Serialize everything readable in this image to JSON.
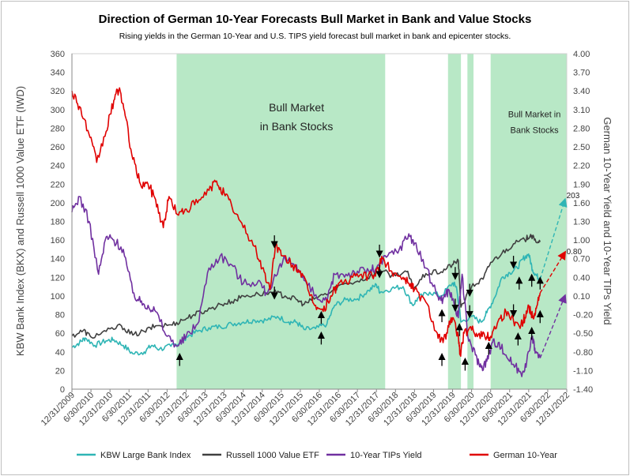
{
  "chart_data": {
    "type": "line",
    "title": "Direction of German 10-Year Forecasts Bull Market in Bank and Value Stocks",
    "subtitle": "Rising yields in the German 10-Year and U.S. TIPS yield forecast bull market in bank and epicenter stocks.",
    "ylabel_left": "KBW Bank Index (BKX) and Russell 1000 Value ETF (IWD)",
    "ylabel_right": "German 10-Year Yield and 10-Year TIPs Yield",
    "ylim_left": [
      0,
      360
    ],
    "ylim_right": [
      -1.4,
      4.0
    ],
    "yticks_left": [
      "0",
      "20",
      "40",
      "60",
      "80",
      "100",
      "120",
      "140",
      "160",
      "180",
      "200",
      "220",
      "240",
      "260",
      "280",
      "300",
      "320",
      "340",
      "360"
    ],
    "yticks_right": [
      "-1.40",
      "-1.10",
      "-0.80",
      "-0.50",
      "-0.20",
      "0.10",
      "0.40",
      "0.70",
      "1.00",
      "1.30",
      "1.60",
      "1.90",
      "2.20",
      "2.50",
      "2.80",
      "3.10",
      "3.40",
      "3.70",
      "4.00"
    ],
    "xticks": [
      "12/31/2009",
      "6/30/2010",
      "12/31/2010",
      "6/30/2011",
      "12/31/2011",
      "6/30/2012",
      "12/31/2012",
      "6/30/2013",
      "12/31/2013",
      "6/30/2014",
      "12/31/2014",
      "6/30/2015",
      "12/31/2015",
      "6/30/2016",
      "12/31/2016",
      "6/30/2017",
      "12/31/2017",
      "6/30/2018",
      "12/31/2018",
      "6/30/2019",
      "12/31/2019",
      "6/30/2020",
      "12/31/2020",
      "6/30/2021",
      "12/31/2021",
      "6/30/2022",
      "12/31/2022"
    ],
    "xlim": [
      2010.0,
      2023.0
    ],
    "shaded_regions": [
      [
        2012.75,
        2018.23
      ],
      [
        2019.88,
        2020.22
      ],
      [
        2020.39,
        2020.55
      ],
      [
        2021.0,
        2023.0
      ]
    ],
    "annotations": [
      {
        "text": "Bull Market",
        "x": 2015.9,
        "y": 298
      },
      {
        "text": "in Bank Stocks",
        "x": 2015.9,
        "y": 278
      },
      {
        "text": "Bull Market in",
        "x": 2022.15,
        "y": 292
      },
      {
        "text": "Bank Stocks",
        "x": 2022.15,
        "y": 275
      },
      {
        "text": "203",
        "x": 2022.95,
        "y": 205
      },
      {
        "text": "0.80",
        "x": 2022.95,
        "y": 145
      }
    ],
    "series": [
      {
        "name": "KBW Large Bank Index",
        "color": "#2fb5b5",
        "axis": "left",
        "points": [
          [
            2010.0,
            45
          ],
          [
            2010.2,
            50
          ],
          [
            2010.35,
            55
          ],
          [
            2010.6,
            47
          ],
          [
            2010.9,
            52
          ],
          [
            2011.1,
            53
          ],
          [
            2011.35,
            47
          ],
          [
            2011.6,
            38
          ],
          [
            2011.9,
            40
          ],
          [
            2012.1,
            47
          ],
          [
            2012.3,
            43
          ],
          [
            2012.6,
            46
          ],
          [
            2012.85,
            50
          ],
          [
            2013.0,
            56
          ],
          [
            2013.3,
            62
          ],
          [
            2013.6,
            66
          ],
          [
            2013.9,
            67
          ],
          [
            2014.2,
            70
          ],
          [
            2014.5,
            72
          ],
          [
            2014.8,
            74
          ],
          [
            2015.1,
            74
          ],
          [
            2015.4,
            78
          ],
          [
            2015.7,
            72
          ],
          [
            2015.9,
            72
          ],
          [
            2016.1,
            64
          ],
          [
            2016.4,
            65
          ],
          [
            2016.7,
            70
          ],
          [
            2016.9,
            90
          ],
          [
            2017.2,
            96
          ],
          [
            2017.5,
            97
          ],
          [
            2017.8,
            106
          ],
          [
            2018.0,
            112
          ],
          [
            2018.1,
            104
          ],
          [
            2018.4,
            108
          ],
          [
            2018.7,
            110
          ],
          [
            2018.95,
            90
          ],
          [
            2019.1,
            98
          ],
          [
            2019.4,
            104
          ],
          [
            2019.7,
            100
          ],
          [
            2020.0,
            114
          ],
          [
            2020.1,
            110
          ],
          [
            2020.22,
            72
          ],
          [
            2020.5,
            78
          ],
          [
            2020.75,
            72
          ],
          [
            2020.9,
            82
          ],
          [
            2021.1,
            98
          ],
          [
            2021.3,
            120
          ],
          [
            2021.5,
            125
          ],
          [
            2021.7,
            130
          ],
          [
            2021.85,
            140
          ],
          [
            2022.0,
            145
          ],
          [
            2022.1,
            128
          ],
          [
            2022.2,
            122
          ],
          [
            2022.3,
            118
          ]
        ]
      },
      {
        "name": "Russell 1000 Value ETF",
        "color": "#404040",
        "axis": "left",
        "points": [
          [
            2010.0,
            57
          ],
          [
            2010.3,
            63
          ],
          [
            2010.5,
            56
          ],
          [
            2010.9,
            62
          ],
          [
            2011.3,
            68
          ],
          [
            2011.6,
            58
          ],
          [
            2011.9,
            62
          ],
          [
            2012.2,
            68
          ],
          [
            2012.6,
            69
          ],
          [
            2012.9,
            74
          ],
          [
            2013.2,
            80
          ],
          [
            2013.5,
            84
          ],
          [
            2013.9,
            91
          ],
          [
            2014.2,
            94
          ],
          [
            2014.5,
            100
          ],
          [
            2014.9,
            102
          ],
          [
            2015.3,
            104
          ],
          [
            2015.6,
            100
          ],
          [
            2015.9,
            96
          ],
          [
            2016.1,
            91
          ],
          [
            2016.4,
            98
          ],
          [
            2016.8,
            104
          ],
          [
            2017.0,
            111
          ],
          [
            2017.5,
            116
          ],
          [
            2017.9,
            122
          ],
          [
            2018.1,
            128
          ],
          [
            2018.4,
            122
          ],
          [
            2018.8,
            126
          ],
          [
            2018.98,
            108
          ],
          [
            2019.3,
            124
          ],
          [
            2019.7,
            126
          ],
          [
            2020.0,
            134
          ],
          [
            2020.15,
            138
          ],
          [
            2020.22,
            88
          ],
          [
            2020.5,
            110
          ],
          [
            2020.8,
            118
          ],
          [
            2021.0,
            136
          ],
          [
            2021.3,
            146
          ],
          [
            2021.6,
            156
          ],
          [
            2021.9,
            160
          ],
          [
            2022.05,
            166
          ],
          [
            2022.15,
            160
          ],
          [
            2022.3,
            158
          ]
        ]
      },
      {
        "name": "10-Year TIPs Yield",
        "color": "#7030a0",
        "axis": "right",
        "points": [
          [
            2010.0,
            1.45
          ],
          [
            2010.2,
            1.7
          ],
          [
            2010.45,
            1.3
          ],
          [
            2010.7,
            0.45
          ],
          [
            2010.9,
            1.05
          ],
          [
            2011.1,
            1.0
          ],
          [
            2011.35,
            0.85
          ],
          [
            2011.6,
            0.15
          ],
          [
            2011.8,
            0.0
          ],
          [
            2012.0,
            -0.05
          ],
          [
            2012.2,
            -0.15
          ],
          [
            2012.5,
            -0.55
          ],
          [
            2012.8,
            -0.7
          ],
          [
            2013.0,
            -0.55
          ],
          [
            2013.3,
            -0.35
          ],
          [
            2013.6,
            0.55
          ],
          [
            2013.9,
            0.75
          ],
          [
            2014.2,
            0.6
          ],
          [
            2014.5,
            0.3
          ],
          [
            2014.9,
            0.35
          ],
          [
            2015.1,
            0.15
          ],
          [
            2015.4,
            0.45
          ],
          [
            2015.6,
            0.7
          ],
          [
            2015.9,
            0.6
          ],
          [
            2016.1,
            0.35
          ],
          [
            2016.45,
            0.05
          ],
          [
            2016.7,
            0.0
          ],
          [
            2016.9,
            0.45
          ],
          [
            2017.2,
            0.45
          ],
          [
            2017.5,
            0.5
          ],
          [
            2017.8,
            0.5
          ],
          [
            2018.0,
            0.55
          ],
          [
            2018.3,
            0.75
          ],
          [
            2018.6,
            0.85
          ],
          [
            2018.85,
            1.1
          ],
          [
            2019.0,
            0.95
          ],
          [
            2019.3,
            0.55
          ],
          [
            2019.6,
            0.1
          ],
          [
            2019.75,
            0.05
          ],
          [
            2019.9,
            0.2
          ],
          [
            2020.0,
            0.05
          ],
          [
            2020.15,
            -0.25
          ],
          [
            2020.25,
            0.45
          ],
          [
            2020.4,
            -0.55
          ],
          [
            2020.6,
            -0.85
          ],
          [
            2020.75,
            -1.05
          ],
          [
            2020.9,
            -0.95
          ],
          [
            2021.05,
            -0.65
          ],
          [
            2021.2,
            -0.65
          ],
          [
            2021.4,
            -0.85
          ],
          [
            2021.6,
            -1.0
          ],
          [
            2021.8,
            -1.15
          ],
          [
            2021.95,
            -0.95
          ],
          [
            2022.1,
            -0.55
          ],
          [
            2022.18,
            -0.8
          ],
          [
            2022.3,
            -0.9
          ]
        ]
      },
      {
        "name": "German 10-Year",
        "color": "#e00000",
        "axis": "right",
        "points": [
          [
            2010.0,
            3.4
          ],
          [
            2010.2,
            3.15
          ],
          [
            2010.45,
            2.7
          ],
          [
            2010.65,
            2.25
          ],
          [
            2010.9,
            2.75
          ],
          [
            2011.1,
            3.25
          ],
          [
            2011.25,
            3.45
          ],
          [
            2011.4,
            3.0
          ],
          [
            2011.6,
            2.3
          ],
          [
            2011.8,
            1.9
          ],
          [
            2012.0,
            1.9
          ],
          [
            2012.2,
            1.65
          ],
          [
            2012.4,
            1.2
          ],
          [
            2012.55,
            1.7
          ],
          [
            2012.8,
            1.4
          ],
          [
            2013.0,
            1.5
          ],
          [
            2013.3,
            1.6
          ],
          [
            2013.6,
            1.8
          ],
          [
            2013.8,
            1.95
          ],
          [
            2014.0,
            1.75
          ],
          [
            2014.2,
            1.55
          ],
          [
            2014.5,
            1.2
          ],
          [
            2014.8,
            0.9
          ],
          [
            2015.0,
            0.55
          ],
          [
            2015.2,
            0.2
          ],
          [
            2015.35,
            0.95
          ],
          [
            2015.5,
            0.75
          ],
          [
            2015.8,
            0.6
          ],
          [
            2016.0,
            0.5
          ],
          [
            2016.2,
            0.2
          ],
          [
            2016.4,
            -0.05
          ],
          [
            2016.6,
            -0.15
          ],
          [
            2016.8,
            0.1
          ],
          [
            2017.0,
            0.3
          ],
          [
            2017.3,
            0.35
          ],
          [
            2017.6,
            0.45
          ],
          [
            2017.9,
            0.4
          ],
          [
            2018.05,
            0.55
          ],
          [
            2018.15,
            0.7
          ],
          [
            2018.4,
            0.5
          ],
          [
            2018.7,
            0.4
          ],
          [
            2018.9,
            0.3
          ],
          [
            2019.0,
            0.2
          ],
          [
            2019.3,
            0.0
          ],
          [
            2019.6,
            -0.5
          ],
          [
            2019.75,
            -0.65
          ],
          [
            2019.9,
            -0.4
          ],
          [
            2020.0,
            -0.25
          ],
          [
            2020.15,
            -0.55
          ],
          [
            2020.2,
            -0.85
          ],
          [
            2020.3,
            -0.5
          ],
          [
            2020.5,
            -0.45
          ],
          [
            2020.7,
            -0.5
          ],
          [
            2020.9,
            -0.55
          ],
          [
            2021.0,
            -0.55
          ],
          [
            2021.2,
            -0.3
          ],
          [
            2021.4,
            -0.15
          ],
          [
            2021.6,
            -0.3
          ],
          [
            2021.8,
            -0.35
          ],
          [
            2021.9,
            -0.25
          ],
          [
            2022.0,
            -0.05
          ],
          [
            2022.1,
            -0.25
          ],
          [
            2022.2,
            -0.1
          ],
          [
            2022.3,
            0.15
          ]
        ]
      }
    ],
    "forecast_arrows": [
      {
        "series": "KBW Large Bank Index",
        "axis": "left",
        "from": [
          2022.3,
          118
        ],
        "to": [
          2022.95,
          203
        ]
      },
      {
        "series": "German 10-Year",
        "axis": "right",
        "from": [
          2022.3,
          0.15
        ],
        "to": [
          2022.95,
          0.8
        ]
      },
      {
        "series": "10-Year TIPs Yield",
        "axis": "right",
        "from": [
          2022.3,
          -0.9
        ],
        "to": [
          2022.95,
          0.1
        ]
      }
    ],
    "legend_position": "bottom",
    "grid": false
  }
}
